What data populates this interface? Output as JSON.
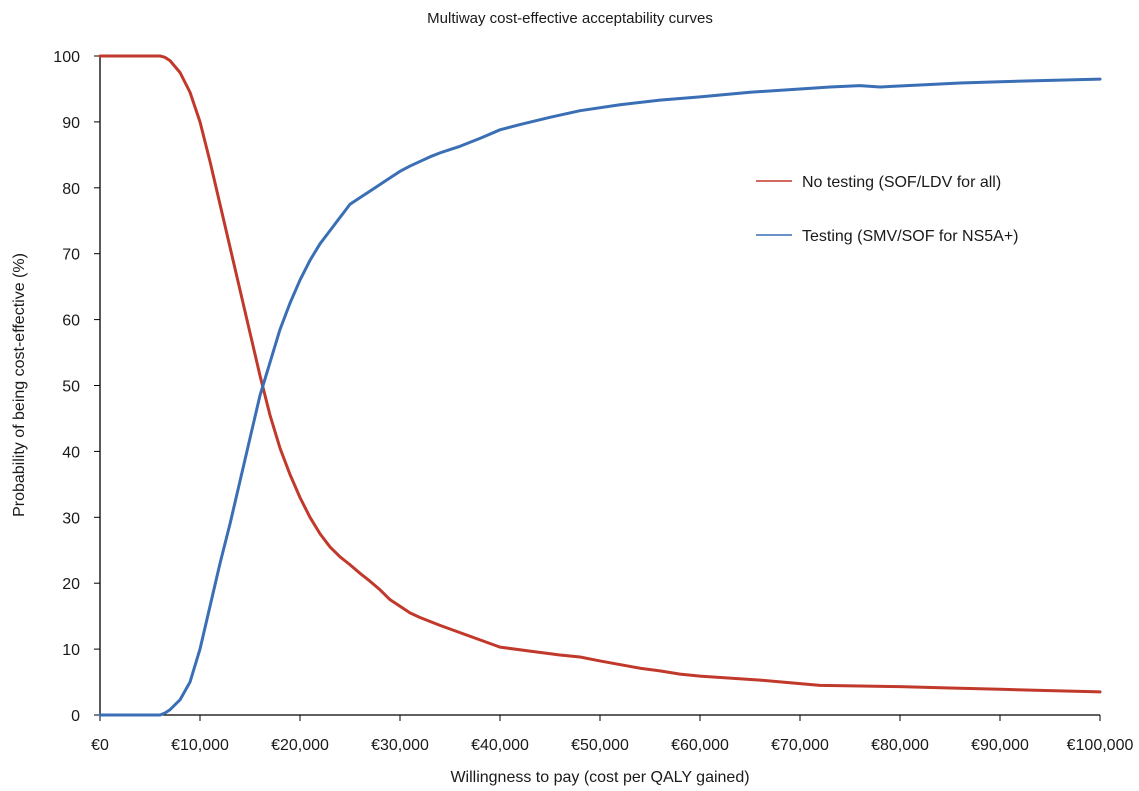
{
  "chart_data": {
    "type": "line",
    "title": "Multiway cost-effective acceptability curves",
    "xlabel": "Willingness to pay (cost per QALY gained)",
    "ylabel": "Probability of being cost-effective (%)",
    "xlim": [
      0,
      100000
    ],
    "ylim": [
      0,
      100
    ],
    "x_ticks": [
      0,
      10000,
      20000,
      30000,
      40000,
      50000,
      60000,
      70000,
      80000,
      90000,
      100000
    ],
    "x_tick_labels": [
      "€0",
      "€10,000",
      "€20,000",
      "€30,000",
      "€40,000",
      "€50,000",
      "€60,000",
      "€70,000",
      "€80,000",
      "€90,000",
      "€100,000"
    ],
    "y_ticks": [
      0,
      10,
      20,
      30,
      40,
      50,
      60,
      70,
      80,
      90,
      100
    ],
    "y_tick_labels": [
      "0",
      "10",
      "20",
      "30",
      "40",
      "50",
      "60",
      "70",
      "80",
      "90",
      "100"
    ],
    "grid": false,
    "legend_position": "right",
    "series": [
      {
        "name": "No testing (SOF/LDV for all)",
        "color": "#c0392b",
        "x": [
          0,
          6000,
          6500,
          7000,
          8000,
          9000,
          10000,
          11000,
          12000,
          13000,
          14000,
          15000,
          16000,
          17000,
          18000,
          19000,
          20000,
          21000,
          22000,
          23000,
          24000,
          25000,
          26000,
          27000,
          28000,
          29000,
          30000,
          31000,
          32000,
          34000,
          36000,
          38000,
          40000,
          43000,
          46000,
          48000,
          50000,
          54000,
          56000,
          58000,
          60000,
          63000,
          66000,
          69000,
          72000,
          76000,
          80000,
          85000,
          90000,
          95000,
          100000
        ],
        "y": [
          100,
          100,
          99.8,
          99.3,
          97.5,
          94.5,
          90,
          84,
          77.5,
          71,
          64.5,
          58,
          51.5,
          45.5,
          40.5,
          36.5,
          33,
          30,
          27.5,
          25.5,
          24,
          22.8,
          21.5,
          20.3,
          19,
          17.5,
          16.5,
          15.5,
          14.8,
          13.6,
          12.5,
          11.4,
          10.3,
          9.7,
          9.1,
          8.8,
          8.2,
          7.1,
          6.7,
          6.2,
          5.9,
          5.6,
          5.3,
          4.9,
          4.5,
          4.4,
          4.3,
          4.1,
          3.9,
          3.7,
          3.5
        ]
      },
      {
        "name": "Testing (SMV/SOF for NS5A+)",
        "color": "#3a6fb5",
        "x": [
          0,
          6000,
          6500,
          7000,
          8000,
          9000,
          10000,
          11000,
          12000,
          13000,
          14000,
          15000,
          16000,
          17000,
          18000,
          19000,
          20000,
          21000,
          22000,
          23000,
          24000,
          24500,
          25000,
          26000,
          27000,
          28000,
          29000,
          30000,
          31000,
          32000,
          33000,
          34000,
          35000,
          36000,
          38000,
          40000,
          42000,
          45000,
          48000,
          52000,
          56000,
          60000,
          65000,
          70000,
          73000,
          76000,
          78000,
          82000,
          86000,
          90000,
          95000,
          100000
        ],
        "y": [
          0,
          0,
          0.3,
          0.8,
          2.3,
          5,
          10,
          16.5,
          23,
          29,
          35.5,
          42,
          48.5,
          53.5,
          58.5,
          62.5,
          66,
          69,
          71.5,
          73.5,
          75.5,
          76.5,
          77.5,
          78.5,
          79.5,
          80.5,
          81.5,
          82.5,
          83.3,
          84,
          84.7,
          85.3,
          85.8,
          86.3,
          87.5,
          88.8,
          89.6,
          90.7,
          91.7,
          92.6,
          93.3,
          93.8,
          94.5,
          95,
          95.3,
          95.5,
          95.3,
          95.6,
          95.9,
          96.1,
          96.3,
          96.5
        ]
      }
    ]
  }
}
